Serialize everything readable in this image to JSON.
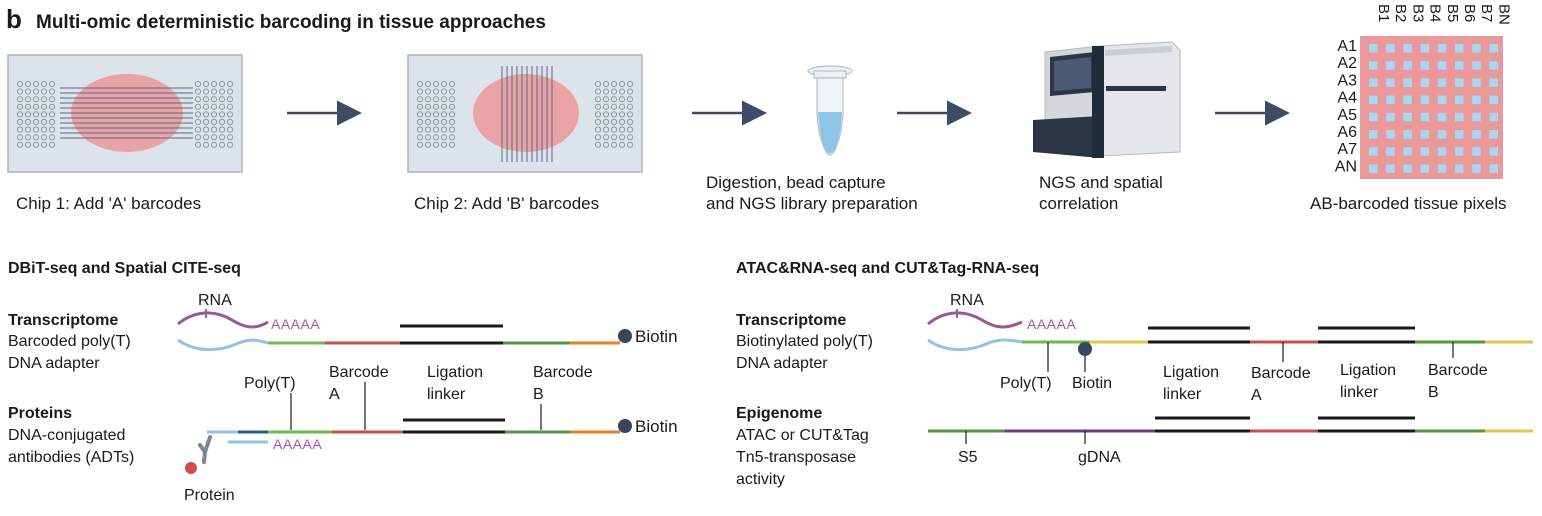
{
  "panel_letter": "b",
  "title": "Multi-omic deterministic barcoding in tissue approaches",
  "workflow": {
    "chip1_caption": "Chip 1:  Add 'A' barcodes",
    "chip2_caption": "Chip 2:  Add 'B' barcodes",
    "digestion_caption_line1": "Digestion, bead capture",
    "digestion_caption_line2": "and NGS library preparation",
    "ngs_caption_line1": "NGS and spatial",
    "ngs_caption_line2": "correlation",
    "pixels_caption": "AB-barcoded tissue pixels",
    "row_labels": [
      "A1",
      "A2",
      "A3",
      "A4",
      "A5",
      "A6",
      "A7",
      "AN"
    ],
    "col_labels": [
      "B1",
      "B2",
      "B3",
      "B4",
      "B5",
      "B6",
      "B7",
      "BN"
    ]
  },
  "left_panel": {
    "heading": "DBiT-seq and Spatial CITE-seq",
    "transcriptome_title": "Transcriptome",
    "transcriptome_line1": "Barcoded poly(T)",
    "transcriptome_line2": "DNA adapter",
    "proteins_title": "Proteins",
    "proteins_line1": "DNA-conjugated",
    "proteins_line2": "antibodies (ADTs)",
    "rna_label": "RNA",
    "polya_1": "AAAAA",
    "polya_2": "AAAAA",
    "biotin_1": "Biotin",
    "biotin_2": "Biotin",
    "polyt_label": "Poly(T)",
    "barcode_a_line1": "Barcode",
    "barcode_a_line2": "A",
    "ligation_line1": "Ligation",
    "ligation_line2": "linker",
    "barcode_b_line1": "Barcode",
    "barcode_b_line2": "B",
    "protein_label": "Protein"
  },
  "right_panel": {
    "heading": "ATAC&RNA-seq and  CUT&Tag-RNA-seq",
    "transcriptome_title": "Transcriptome",
    "transcriptome_line1": "Biotinylated poly(T)",
    "transcriptome_line2": "DNA adapter",
    "epigenome_title": "Epigenome",
    "epigenome_line1": "ATAC or CUT&Tag",
    "epigenome_line2": "Tn5-transposase",
    "epigenome_line3": "activity",
    "rna_label": "RNA",
    "polya": "AAAAA",
    "polyt_label": "Poly(T)",
    "biotin_label": "Biotin",
    "ligation1_line1": "Ligation",
    "ligation1_line2": "linker",
    "barcode_a_line1": "Barcode",
    "barcode_a_line2": "A",
    "ligation2_line1": "Ligation",
    "ligation2_line2": "linker",
    "barcode_b_line1": "Barcode",
    "barcode_b_line2": "B",
    "s5_label": "S5",
    "gdna_label": "gDNA"
  },
  "colors": {
    "chip_fill": "#dde3ea",
    "chip_border": "#a9b4c0",
    "tissue": "#e9a3a6",
    "arrow": "#3d4b63",
    "rna": "#a0529c",
    "adapter_blue": "#8ec5e6",
    "dark_blue": "#1f5f8b",
    "green": "#6cbd45",
    "dark_green": "#4c9a3c",
    "red": "#cf4a4a",
    "orange": "#ee7a22",
    "yellow": "#e8c24a",
    "purple": "#6b3a8c",
    "biotin": "#3a4658",
    "pixel_grid": "#e9999b",
    "pixel_cell": "#a9d7f0"
  }
}
